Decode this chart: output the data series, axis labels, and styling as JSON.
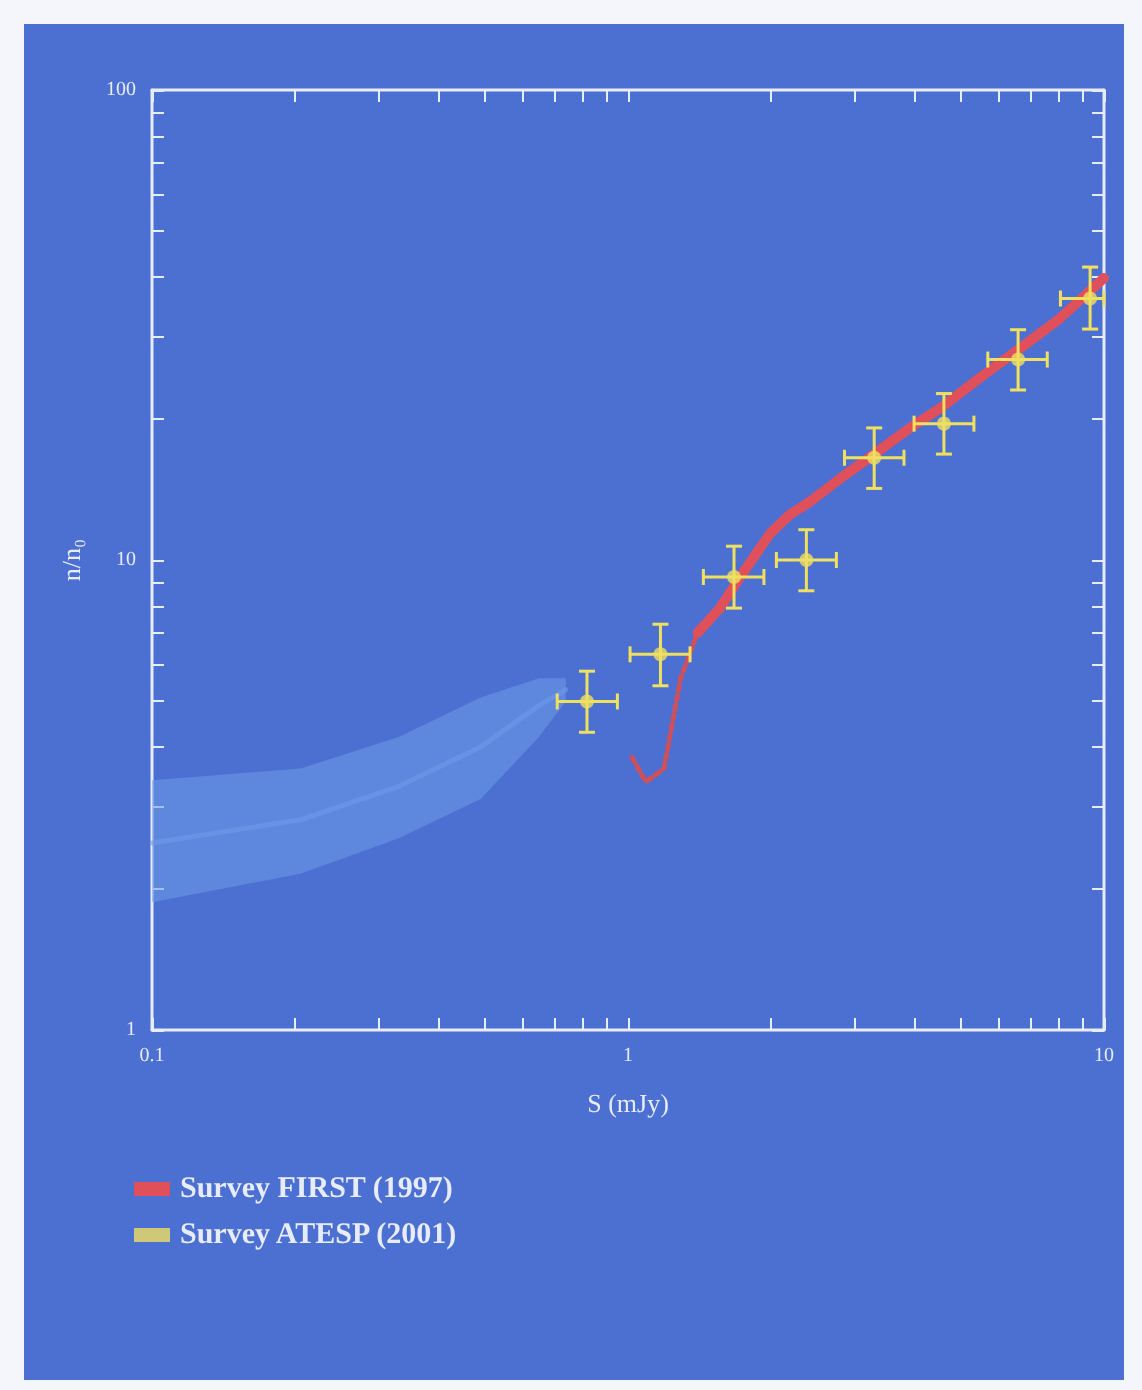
{
  "chart_data": {
    "type": "scatter",
    "xlabel": "S (mJy)",
    "ylabel": "n/n₀",
    "log": "xy",
    "grid": false,
    "legend": "bottom left",
    "marker": "circle",
    "xlim": [
      0.1,
      10
    ],
    "ylim": [
      1,
      100
    ],
    "xticks": [
      {
        "value": 0.1,
        "label": "0.1"
      },
      {
        "value": 0.2,
        "label": null
      },
      {
        "value": 0.3,
        "label": null
      },
      {
        "value": 0.4,
        "label": null
      },
      {
        "value": 0.5,
        "label": null
      },
      {
        "value": 0.6,
        "label": null
      },
      {
        "value": 0.7,
        "label": null
      },
      {
        "value": 0.8,
        "label": null
      },
      {
        "value": 0.9,
        "label": null
      },
      {
        "value": 1,
        "label": "1"
      },
      {
        "value": 2,
        "label": null
      },
      {
        "value": 3,
        "label": null
      },
      {
        "value": 4,
        "label": null
      },
      {
        "value": 5,
        "label": null
      },
      {
        "value": 6,
        "label": null
      },
      {
        "value": 7,
        "label": null
      },
      {
        "value": 8,
        "label": null
      },
      {
        "value": 9,
        "label": null
      },
      {
        "value": 10,
        "label": "10"
      }
    ],
    "yticks": [
      {
        "value": 1,
        "label": "1"
      },
      {
        "value": 2,
        "label": null
      },
      {
        "value": 3,
        "label": null
      },
      {
        "value": 4,
        "label": null
      },
      {
        "value": 5,
        "label": null
      },
      {
        "value": 6,
        "label": null
      },
      {
        "value": 7,
        "label": null
      },
      {
        "value": 8,
        "label": null
      },
      {
        "value": 9,
        "label": null
      },
      {
        "value": 10,
        "label": "10"
      },
      {
        "value": 20,
        "label": null
      },
      {
        "value": 30,
        "label": null
      },
      {
        "value": 40,
        "label": null
      },
      {
        "value": 50,
        "label": null
      },
      {
        "value": 60,
        "label": null
      },
      {
        "value": 70,
        "label": null
      },
      {
        "value": 80,
        "label": null
      },
      {
        "value": 90,
        "label": null
      },
      {
        "value": 100,
        "label": "100"
      }
    ],
    "series": [
      {
        "type": "line",
        "color": "#6f9be8",
        "x": [
          0.1,
          0.205,
          0.33,
          0.49,
          0.65,
          0.74
        ],
        "values": [
          2.5,
          2.8,
          3.3,
          4.0,
          4.9,
          5.3
        ],
        "lower": [
          1.87,
          2.15,
          2.56,
          3.1,
          4.2,
          5.0
        ],
        "upper": [
          3.4,
          3.6,
          4.2,
          5.1,
          5.6,
          5.6
        ],
        "marker": "none"
      },
      {
        "type": "line",
        "color": "#d0505a",
        "line_style": "dotted",
        "marker": "none",
        "x": [
          1.02,
          1.09,
          1.19,
          1.29,
          1.4
        ],
        "values": [
          3.8,
          3.37,
          3.6,
          5.6,
          7.0
        ]
      },
      {
        "type": "line",
        "name": "Survey FIRST (1997)",
        "color": "#e0505a",
        "line_style": "solid",
        "marker": "none",
        "x": [
          1.4,
          1.56,
          1.72,
          1.99,
          2.19,
          2.41,
          2.79,
          3.29,
          3.91,
          4.52,
          5.48,
          6.66,
          8.09,
          10
        ],
        "values": [
          7.0,
          7.9,
          9.2,
          11.4,
          12.5,
          13.3,
          14.9,
          16.8,
          19.1,
          21.0,
          24.4,
          28.2,
          32.7,
          39.8
        ]
      },
      {
        "name": "Survey ATESP (2001)",
        "color": "#f0e060",
        "x": [
          0.82,
          1.17,
          1.67,
          2.37,
          3.29,
          4.61,
          6.6,
          9.35
        ],
        "values": [
          5.0,
          6.3,
          9.2,
          10.0,
          16.5,
          19.5,
          26.7,
          36
        ],
        "errors": [
          [
            4.3,
            5.8
          ],
          [
            5.4,
            7.3
          ],
          [
            7.9,
            10.7
          ],
          [
            8.6,
            11.6
          ],
          [
            14.2,
            19.1
          ],
          [
            16.8,
            22.6
          ],
          [
            23.0,
            30.9
          ],
          [
            31,
            42
          ]
        ],
        "xerrors": [
          [
            0.71,
            0.95
          ],
          [
            1.01,
            1.35
          ],
          [
            1.44,
            1.93
          ],
          [
            2.05,
            2.74
          ],
          [
            2.85,
            3.8
          ],
          [
            3.99,
            5.33
          ],
          [
            5.7,
            7.6
          ],
          [
            8.1,
            10
          ]
        ]
      }
    ]
  }
}
